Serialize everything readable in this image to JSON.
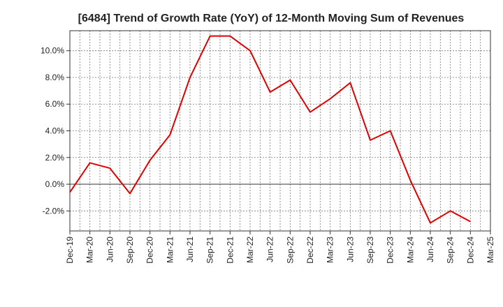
{
  "chart_data": {
    "type": "line",
    "title": "[6484]  Trend of Growth Rate (YoY) of 12-Month Moving Sum of Revenues",
    "xlabel": "",
    "ylabel": "",
    "x_ticks": [
      "Dec-19",
      "Mar-20",
      "Jun-20",
      "Sep-20",
      "Dec-20",
      "Mar-21",
      "Jun-21",
      "Sep-21",
      "Dec-21",
      "Mar-22",
      "Jun-22",
      "Sep-22",
      "Dec-22",
      "Mar-23",
      "Jun-23",
      "Sep-23",
      "Dec-23",
      "Mar-24",
      "Jun-24",
      "Sep-24",
      "Dec-24",
      "Mar-25"
    ],
    "y_ticks": [
      10.0,
      8.0,
      6.0,
      4.0,
      2.0,
      0.0,
      -2.0
    ],
    "y_tick_labels": [
      "10.0%",
      "8.0%",
      "6.0%",
      "4.0%",
      "2.0%",
      "0.0%",
      "-2.0%"
    ],
    "ylim": [
      -3.5,
      11.5
    ],
    "grid": true,
    "series": [
      {
        "color": "#e00000",
        "x": [
          "Dec-19",
          "Mar-20",
          "Jun-20",
          "Sep-20",
          "Dec-20",
          "Mar-21",
          "Jun-21",
          "Sep-21",
          "Dec-21",
          "Mar-22",
          "Jun-22",
          "Sep-22",
          "Dec-22",
          "Mar-23",
          "Jun-23",
          "Sep-23",
          "Dec-23",
          "Mar-24",
          "Jun-24",
          "Sep-24",
          "Dec-24"
        ],
        "values": [
          -0.6,
          1.6,
          1.2,
          -0.7,
          1.8,
          3.7,
          8.0,
          11.1,
          11.1,
          10.0,
          6.9,
          7.8,
          5.4,
          6.4,
          7.6,
          3.3,
          4.0,
          0.3,
          -2.9,
          -2.0,
          -2.8
        ]
      }
    ]
  }
}
